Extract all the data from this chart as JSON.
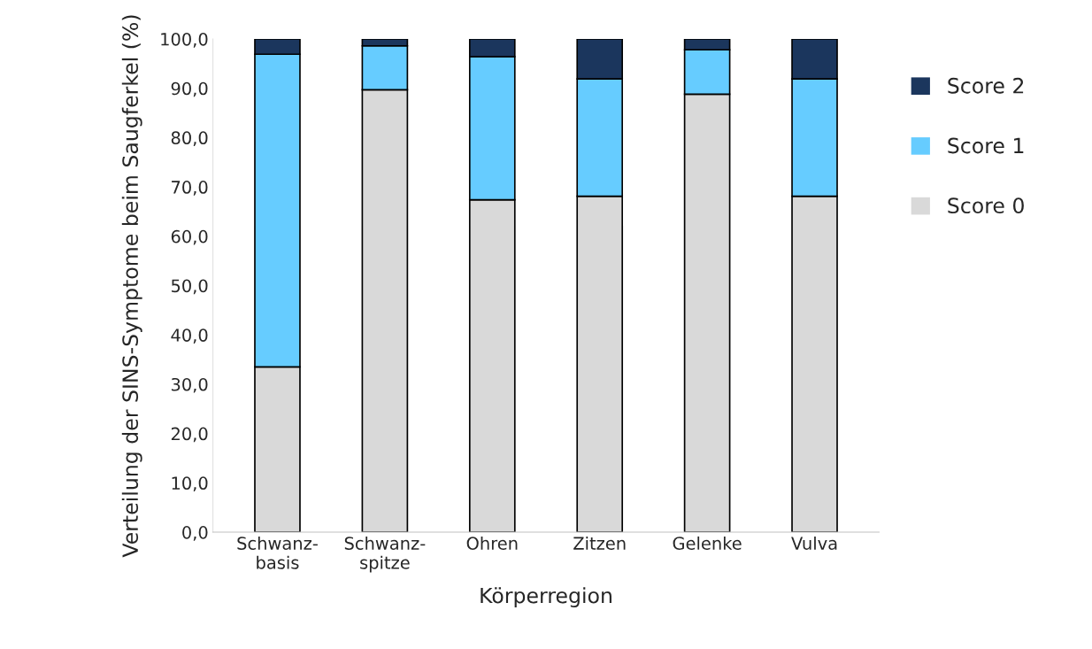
{
  "chart_data": {
    "type": "bar",
    "stacked": true,
    "xlabel": "Körperregion",
    "ylabel": "Verteilung der SINS-Symptome beim Saugferkel (%)",
    "categories": [
      "Schwanz-\nbasis",
      "Schwanz-\nspitze",
      "Ohren",
      "Zitzen",
      "Gelenke",
      "Vulva"
    ],
    "series": [
      {
        "name": "Score 0",
        "color": "#d9d9d9",
        "values": [
          33.5,
          89.7,
          67.4,
          68.1,
          88.8,
          68.1
        ]
      },
      {
        "name": "Score 1",
        "color": "#66ccff",
        "values": [
          63.4,
          8.9,
          29.0,
          23.8,
          9.0,
          23.8
        ]
      },
      {
        "name": "Score 2",
        "color": "#1b365d",
        "values": [
          3.1,
          1.4,
          3.6,
          8.1,
          2.2,
          8.1
        ]
      }
    ],
    "ylim": [
      0,
      100
    ],
    "yticks": [
      {
        "value": 0,
        "label": "0,0"
      },
      {
        "value": 10,
        "label": "10,0"
      },
      {
        "value": 20,
        "label": "20,0"
      },
      {
        "value": 30,
        "label": "30,0"
      },
      {
        "value": 40,
        "label": "40,0"
      },
      {
        "value": 50,
        "label": "50,0"
      },
      {
        "value": 60,
        "label": "60,0"
      },
      {
        "value": 70,
        "label": "70,0"
      },
      {
        "value": 80,
        "label": "80,0"
      },
      {
        "value": 90,
        "label": "90,0"
      },
      {
        "value": 100,
        "label": "100,0"
      }
    ],
    "grid": false,
    "legend": "right"
  }
}
